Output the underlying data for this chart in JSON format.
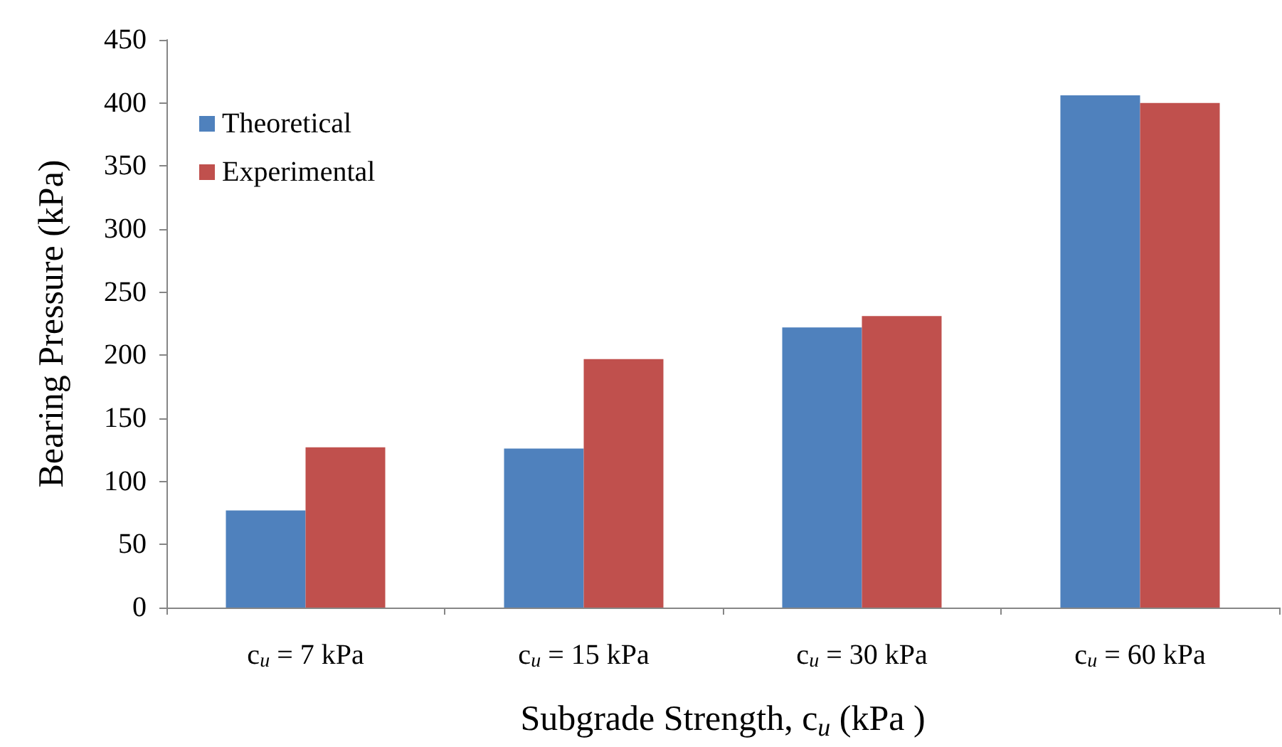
{
  "chart_data": {
    "type": "bar",
    "xlabel": "Subgrade Strength, c$_{u}$ (kPa )",
    "ylabel": "Bearing Pressure (kPa)",
    "categories": [
      "c$_{u}$ = 7 kPa",
      "c$_{u}$ = 15 kPa",
      "c$_{u}$ = 30 kPa",
      "c$_{u}$ = 60 kPa"
    ],
    "series": [
      {
        "name": "Theoretical",
        "color": "#4f81bd",
        "values": [
          77,
          126,
          222,
          406
        ]
      },
      {
        "name": "Experimental",
        "color": "#c0504d",
        "values": [
          127,
          197,
          231,
          400
        ]
      }
    ],
    "ylim": [
      0,
      450
    ],
    "yticks": [
      0,
      50,
      100,
      150,
      200,
      250,
      300,
      350,
      400,
      450
    ],
    "grid": false,
    "legend": "top left"
  }
}
